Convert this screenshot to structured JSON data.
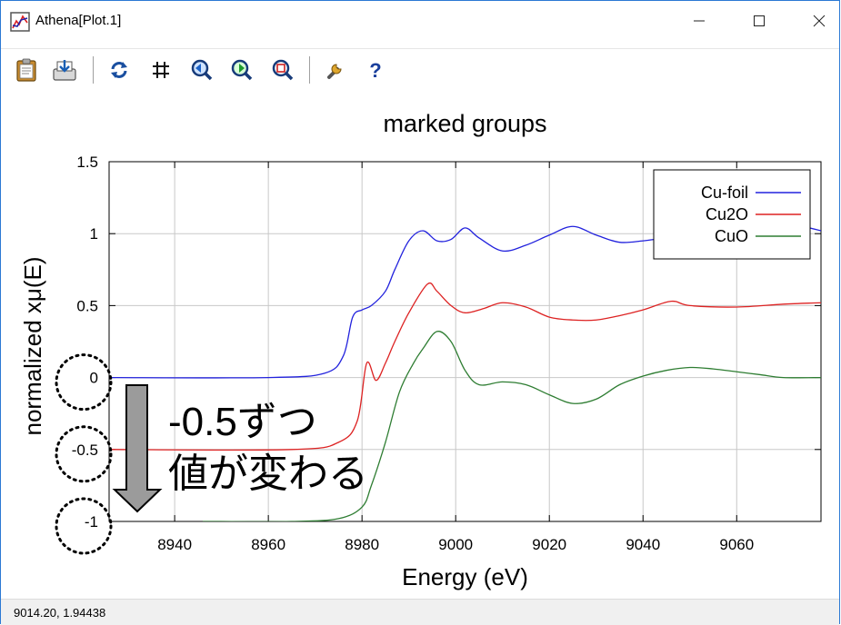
{
  "window": {
    "title": "Athena[Plot.1]",
    "controls": {
      "minimize": "—",
      "maximize": "☐",
      "close": "✕"
    }
  },
  "toolbar": {
    "items": [
      {
        "name": "clipboard-icon"
      },
      {
        "name": "save-icon"
      },
      {
        "name": "refresh-icon"
      },
      {
        "name": "grid-icon"
      },
      {
        "name": "zoom-in-icon"
      },
      {
        "name": "zoom-out-icon"
      },
      {
        "name": "zoom-reset-icon"
      },
      {
        "name": "settings-icon"
      },
      {
        "name": "help-icon"
      }
    ]
  },
  "status": {
    "text": "9014.20,  1.94438"
  },
  "annotation": {
    "line1": "-0.5ずつ",
    "line2": "値が変わる",
    "arrow_color": "#9b9b9b",
    "circled_ticks": [
      0,
      -0.5,
      -1
    ]
  },
  "chart_data": {
    "type": "line",
    "title": "marked groups",
    "xlabel": "Energy    (eV)",
    "ylabel": "normalized xμ(E)",
    "xlim": [
      8926,
      9078
    ],
    "ylim": [
      -1,
      1.5
    ],
    "xticks": [
      8940,
      8960,
      8980,
      9000,
      9020,
      9040,
      9060
    ],
    "yticks": [
      1.5,
      1,
      0.5,
      0,
      -0.5,
      -1
    ],
    "ytick_labels": [
      "1.5",
      "1",
      "0.5",
      "0",
      "-0.5",
      "-1"
    ],
    "grid": true,
    "legend": "top-right",
    "series": [
      {
        "name": "Cu-foil",
        "color": "#2222dd",
        "x": [
          8926,
          8960,
          8972,
          8976,
          8978,
          8980,
          8982,
          8985,
          8987,
          8990,
          8993,
          8996,
          8999,
          9002,
          9005,
          9010,
          9015,
          9020,
          9025,
          9030,
          9035,
          9040,
          9045,
          9050,
          9055,
          9060,
          9065,
          9070,
          9074,
          9078
        ],
        "y": [
          0.0,
          0.0,
          0.03,
          0.15,
          0.42,
          0.47,
          0.5,
          0.6,
          0.75,
          0.95,
          1.02,
          0.95,
          0.96,
          1.04,
          0.97,
          0.88,
          0.92,
          0.99,
          1.05,
          0.99,
          0.94,
          0.95,
          0.97,
          0.98,
          1.0,
          1.02,
          1.04,
          1.06,
          1.05,
          1.02
        ]
      },
      {
        "name": "Cu2O",
        "color": "#dd2222",
        "x": [
          8926,
          8965,
          8975,
          8979,
          8981,
          8983,
          8985,
          8987,
          8990,
          8994,
          8996,
          8999,
          9002,
          9006,
          9010,
          9015,
          9020,
          9025,
          9030,
          9035,
          9040,
          9046,
          9050,
          9060,
          9070,
          9078
        ],
        "y": [
          -0.5,
          -0.5,
          -0.45,
          -0.3,
          0.1,
          -0.02,
          0.1,
          0.25,
          0.45,
          0.65,
          0.6,
          0.5,
          0.45,
          0.48,
          0.52,
          0.49,
          0.42,
          0.4,
          0.4,
          0.43,
          0.47,
          0.53,
          0.5,
          0.49,
          0.51,
          0.52
        ]
      },
      {
        "name": "CuO",
        "color": "#2e7d32",
        "x": [
          8946,
          8965,
          8975,
          8980,
          8982,
          8985,
          8988,
          8991,
          8993,
          8996,
          8999,
          9002,
          9005,
          9010,
          9015,
          9020,
          9025,
          9030,
          9035,
          9040,
          9045,
          9050,
          9055,
          9060,
          9065,
          9070,
          9078
        ],
        "y": [
          -1.0,
          -1.0,
          -0.98,
          -0.9,
          -0.75,
          -0.45,
          -0.1,
          0.1,
          0.2,
          0.32,
          0.25,
          0.05,
          -0.05,
          -0.03,
          -0.05,
          -0.12,
          -0.18,
          -0.15,
          -0.05,
          0.01,
          0.05,
          0.07,
          0.06,
          0.04,
          0.02,
          0.0,
          0.0
        ]
      }
    ]
  }
}
